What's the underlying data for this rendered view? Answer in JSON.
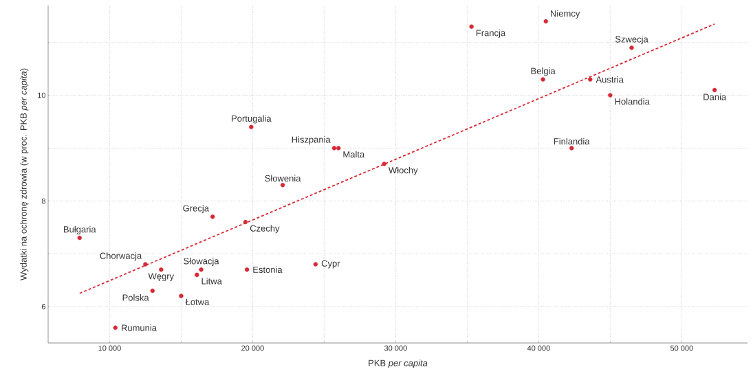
{
  "chart_data": {
    "type": "scatter",
    "xlabel": "PKB *per capita*",
    "ylabel": "Wydatki na ochronę zdrowia (w proc. PKB *per capita*)",
    "xlim": [
      5700,
      54600
    ],
    "ylim": [
      5.31,
      11.7
    ],
    "xticks": [
      {
        "value": 10000,
        "label": "10 000"
      },
      {
        "value": 15000,
        "label": null
      },
      {
        "value": 20000,
        "label": "20 000"
      },
      {
        "value": 25000,
        "label": null
      },
      {
        "value": 30000,
        "label": "30 000"
      },
      {
        "value": 35000,
        "label": null
      },
      {
        "value": 40000,
        "label": "40 000"
      },
      {
        "value": 45000,
        "label": null
      },
      {
        "value": 50000,
        "label": "50 000"
      }
    ],
    "yticks": [
      6,
      {
        "value": 7,
        "label": null
      },
      8,
      {
        "value": 9,
        "label": null
      },
      10,
      {
        "value": 11,
        "label": null
      }
    ],
    "grid": true,
    "series": [
      {
        "marker": "circle",
        "color": "#d62936",
        "x": [
          7900,
          12500,
          13600,
          13000,
          10400,
          15000,
          16100,
          16400,
          17200,
          19500,
          19600,
          19900,
          22100,
          24400,
          25700,
          26000,
          29200,
          35300,
          40500,
          40300,
          43600,
          46500,
          45000,
          42300,
          52300
        ],
        "values": [
          7.3,
          6.8,
          6.7,
          6.3,
          5.6,
          6.2,
          6.6,
          6.7,
          7.7,
          7.6,
          6.7,
          9.4,
          8.3,
          6.8,
          9.0,
          9.0,
          8.7,
          11.3,
          11.4,
          10.3,
          10.3,
          10.9,
          10.0,
          9.0,
          10.1
        ]
      },
      {
        "type": "line",
        "color": "#d62936",
        "line_style": "dashed",
        "marker": "none",
        "x": [
          7900,
          52300
        ],
        "values": [
          6.25,
          11.35
        ]
      }
    ],
    "annotations": [
      {
        "text": "Bułgaria",
        "x": 7900,
        "y": 7.3
      },
      {
        "text": "Chorwacja",
        "x": 12500,
        "y": 6.8
      },
      {
        "text": "Węgry",
        "x": 13600,
        "y": 6.7
      },
      {
        "text": "Polska",
        "x": 13000,
        "y": 6.3
      },
      {
        "text": "Rumunia",
        "x": 10400,
        "y": 5.6
      },
      {
        "text": "Łotwa",
        "x": 15000,
        "y": 6.2
      },
      {
        "text": "Litwa",
        "x": 16100,
        "y": 6.6
      },
      {
        "text": "Słowacja",
        "x": 16400,
        "y": 6.7
      },
      {
        "text": "Grecja",
        "x": 17200,
        "y": 7.7
      },
      {
        "text": "Czechy",
        "x": 19500,
        "y": 7.6
      },
      {
        "text": "Estonia",
        "x": 19600,
        "y": 6.7
      },
      {
        "text": "Portugalia",
        "x": 19900,
        "y": 9.4
      },
      {
        "text": "Słowenia",
        "x": 22100,
        "y": 8.3
      },
      {
        "text": "Cypr",
        "x": 24400,
        "y": 6.8
      },
      {
        "text": "Hiszpania",
        "x": 25700,
        "y": 9.0
      },
      {
        "text": "Malta",
        "x": 26000,
        "y": 9.0
      },
      {
        "text": "Włochy",
        "x": 29200,
        "y": 8.7
      },
      {
        "text": "Francja",
        "x": 35300,
        "y": 11.3
      },
      {
        "text": "Niemcy",
        "x": 40500,
        "y": 11.4
      },
      {
        "text": "Belgia",
        "x": 40300,
        "y": 10.3
      },
      {
        "text": "Austria",
        "x": 43600,
        "y": 10.3
      },
      {
        "text": "Szwecja",
        "x": 46500,
        "y": 10.9
      },
      {
        "text": "Holandia",
        "x": 45000,
        "y": 10.0
      },
      {
        "text": "Finlandia",
        "x": 42300,
        "y": 9.0
      },
      {
        "text": "Dania",
        "x": 52300,
        "y": 10.1
      }
    ]
  }
}
